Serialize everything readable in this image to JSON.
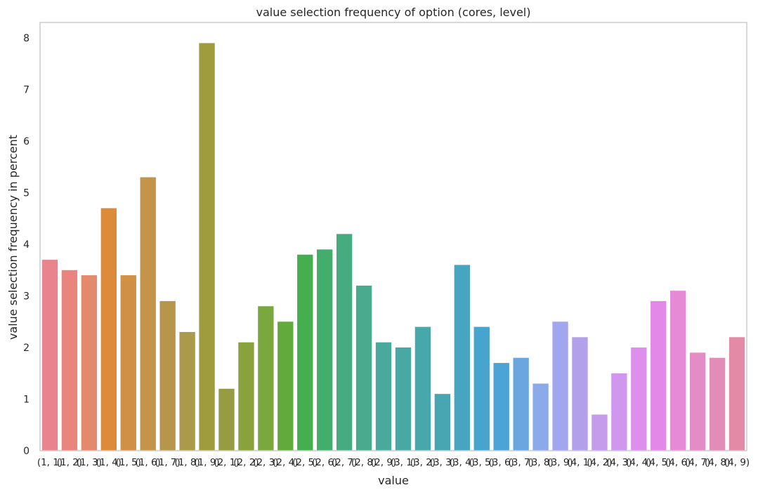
{
  "chart_data": {
    "type": "bar",
    "title": "value selection frequency of option (cores, level)",
    "xlabel": "value",
    "ylabel": "value selection frequency in percent",
    "ylim": [
      0,
      8.3
    ],
    "yticks": [
      0,
      1,
      2,
      3,
      4,
      5,
      6,
      7,
      8
    ],
    "grid": false,
    "categories": [
      "(1, 1)",
      "(1, 2)",
      "(1, 3)",
      "(1, 4)",
      "(1, 5)",
      "(1, 6)",
      "(1, 7)",
      "(1, 8)",
      "(1, 9)",
      "(2, 1)",
      "(2, 2)",
      "(2, 3)",
      "(2, 4)",
      "(2, 5)",
      "(2, 6)",
      "(2, 7)",
      "(2, 8)",
      "(2, 9)",
      "(3, 1)",
      "(3, 2)",
      "(3, 3)",
      "(3, 4)",
      "(3, 5)",
      "(3, 6)",
      "(3, 7)",
      "(3, 8)",
      "(3, 9)",
      "(4, 1)",
      "(4, 2)",
      "(4, 3)",
      "(4, 4)",
      "(4, 5)",
      "(4, 6)",
      "(4, 7)",
      "(4, 8)",
      "(4, 9)"
    ],
    "values": [
      3.7,
      3.5,
      3.4,
      4.7,
      3.4,
      5.3,
      2.9,
      2.3,
      7.9,
      1.2,
      2.1,
      2.8,
      2.5,
      3.8,
      3.9,
      4.2,
      3.2,
      2.1,
      2.0,
      2.4,
      1.1,
      3.6,
      2.4,
      1.7,
      1.8,
      1.3,
      2.5,
      2.2,
      0.7,
      1.5,
      2.0,
      2.9,
      3.1,
      1.9,
      1.8,
      2.2
    ],
    "colors": [
      "#e8848e",
      "#e8857c",
      "#e38a6c",
      "#dd8a3b",
      "#d09046",
      "#c4944b",
      "#b7964b",
      "#ab9a4a",
      "#9f9c3e",
      "#969c42",
      "#8aa23e",
      "#7aa83f",
      "#63aa3c",
      "#45ae4e",
      "#43ad6b",
      "#47ab80",
      "#4aaa8d",
      "#49a99a",
      "#48a8a2",
      "#48a7aa",
      "#48a6b3",
      "#47a5c0",
      "#48a4cc",
      "#4ba3d6",
      "#6ba6e0",
      "#8caaea",
      "#a2a6ee",
      "#b3a0ea",
      "#c39cec",
      "#cf98ee",
      "#dd8fec",
      "#e388e8",
      "#e68ad6",
      "#e48cc5",
      "#e28cb8",
      "#e28aa6"
    ]
  }
}
